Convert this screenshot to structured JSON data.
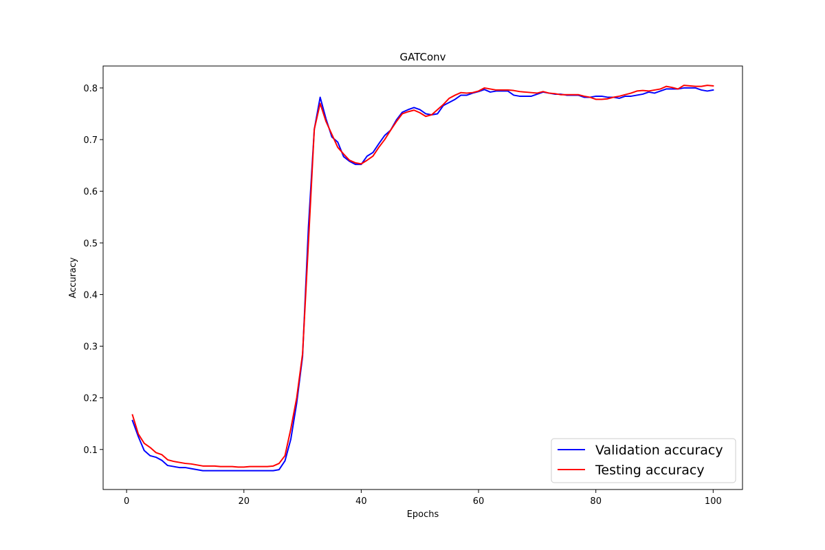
{
  "chart_data": {
    "type": "line",
    "title": "GATConv",
    "xlabel": "Epochs",
    "ylabel": "Accuracy",
    "xlim": [
      -4,
      105
    ],
    "ylim": [
      0.0225,
      0.8425
    ],
    "xticks": [
      0,
      20,
      40,
      60,
      80,
      100
    ],
    "yticks": [
      0.1,
      0.2,
      0.3,
      0.4,
      0.5,
      0.6,
      0.7,
      0.8
    ],
    "grid": false,
    "legend_position": "bottom-right",
    "x": [
      1,
      2,
      3,
      4,
      5,
      6,
      7,
      8,
      9,
      10,
      11,
      12,
      13,
      14,
      15,
      16,
      17,
      18,
      19,
      20,
      21,
      22,
      23,
      24,
      25,
      26,
      27,
      28,
      29,
      30,
      31,
      32,
      33,
      34,
      35,
      36,
      37,
      38,
      39,
      40,
      41,
      42,
      43,
      44,
      45,
      46,
      47,
      48,
      49,
      50,
      51,
      52,
      53,
      54,
      55,
      56,
      57,
      58,
      59,
      60,
      61,
      62,
      63,
      64,
      65,
      66,
      67,
      68,
      69,
      70,
      71,
      72,
      73,
      74,
      75,
      76,
      77,
      78,
      79,
      80,
      81,
      82,
      83,
      84,
      85,
      86,
      87,
      88,
      89,
      90,
      91,
      92,
      93,
      94,
      95,
      96,
      97,
      98,
      99,
      100
    ],
    "series": [
      {
        "name": "Validation accuracy",
        "color": "#0000ff",
        "values": [
          0.156,
          0.125,
          0.098,
          0.088,
          0.085,
          0.079,
          0.069,
          0.067,
          0.065,
          0.065,
          0.063,
          0.061,
          0.059,
          0.059,
          0.059,
          0.059,
          0.059,
          0.059,
          0.059,
          0.059,
          0.059,
          0.059,
          0.059,
          0.059,
          0.059,
          0.061,
          0.078,
          0.12,
          0.19,
          0.28,
          0.53,
          0.72,
          0.782,
          0.74,
          0.705,
          0.695,
          0.667,
          0.658,
          0.652,
          0.652,
          0.668,
          0.675,
          0.692,
          0.708,
          0.718,
          0.738,
          0.753,
          0.758,
          0.762,
          0.758,
          0.75,
          0.748,
          0.75,
          0.766,
          0.772,
          0.778,
          0.786,
          0.786,
          0.79,
          0.793,
          0.797,
          0.792,
          0.794,
          0.794,
          0.794,
          0.786,
          0.784,
          0.784,
          0.784,
          0.788,
          0.792,
          0.79,
          0.788,
          0.788,
          0.786,
          0.786,
          0.786,
          0.782,
          0.782,
          0.784,
          0.784,
          0.782,
          0.782,
          0.78,
          0.784,
          0.784,
          0.786,
          0.788,
          0.792,
          0.79,
          0.794,
          0.798,
          0.798,
          0.798,
          0.8,
          0.8,
          0.8,
          0.796,
          0.794,
          0.796
        ]
      },
      {
        "name": "Testing accuracy",
        "color": "#ff0000",
        "values": [
          0.167,
          0.13,
          0.112,
          0.104,
          0.094,
          0.09,
          0.08,
          0.077,
          0.075,
          0.073,
          0.072,
          0.07,
          0.068,
          0.068,
          0.068,
          0.067,
          0.067,
          0.067,
          0.066,
          0.066,
          0.067,
          0.067,
          0.067,
          0.067,
          0.068,
          0.073,
          0.088,
          0.14,
          0.2,
          0.285,
          0.5,
          0.72,
          0.77,
          0.735,
          0.71,
          0.685,
          0.672,
          0.66,
          0.655,
          0.653,
          0.66,
          0.668,
          0.685,
          0.7,
          0.718,
          0.735,
          0.75,
          0.754,
          0.757,
          0.752,
          0.745,
          0.748,
          0.758,
          0.768,
          0.78,
          0.786,
          0.791,
          0.79,
          0.791,
          0.794,
          0.8,
          0.798,
          0.796,
          0.796,
          0.796,
          0.795,
          0.793,
          0.792,
          0.791,
          0.79,
          0.793,
          0.79,
          0.789,
          0.787,
          0.787,
          0.787,
          0.787,
          0.784,
          0.782,
          0.778,
          0.778,
          0.779,
          0.782,
          0.784,
          0.787,
          0.79,
          0.794,
          0.795,
          0.794,
          0.796,
          0.798,
          0.803,
          0.801,
          0.798,
          0.805,
          0.804,
          0.803,
          0.803,
          0.805,
          0.804
        ]
      }
    ]
  }
}
